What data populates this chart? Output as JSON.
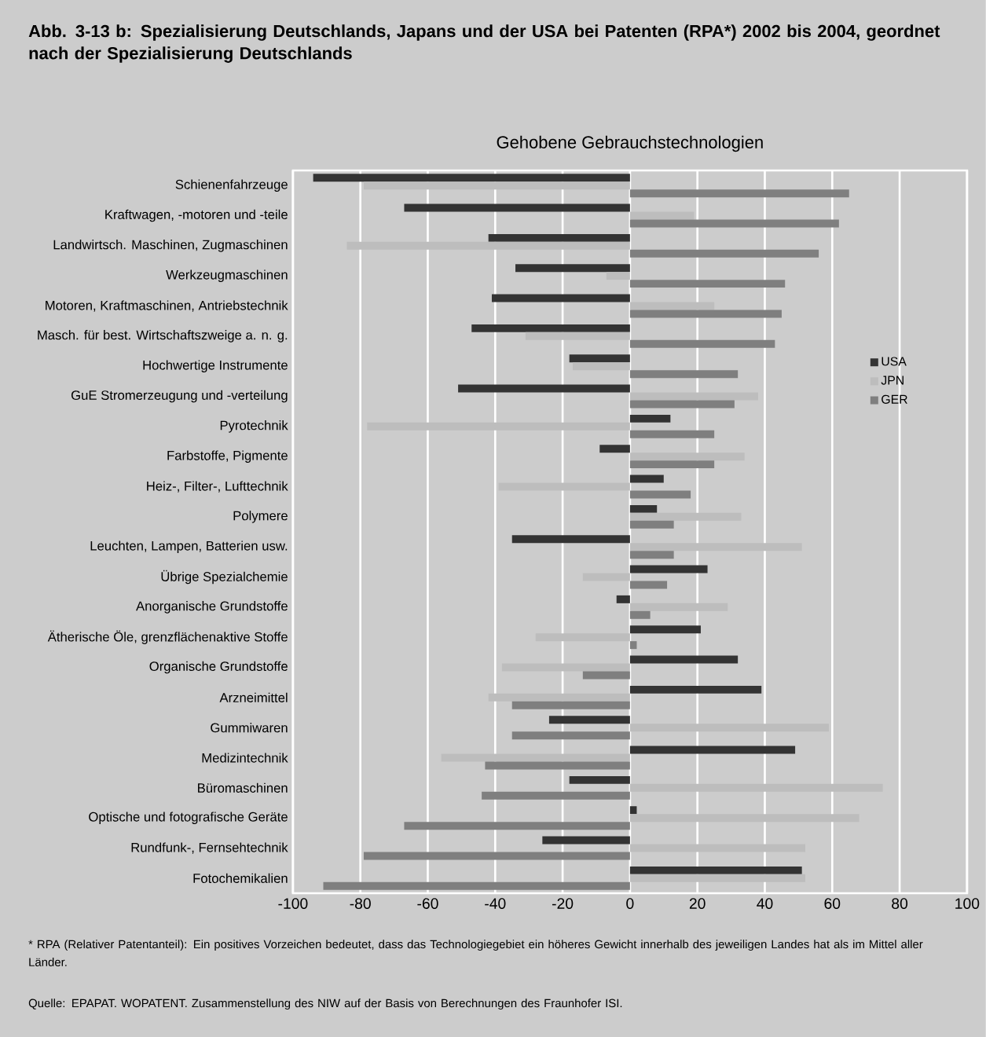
{
  "chart_data": {
    "type": "bar",
    "orientation": "horizontal",
    "title": "Abb. 3-13 b: Spezialisierung Deutschlands, Japans und der USA bei Patenten (RPA*) 2002 bis 2004, geordnet nach der Spezialisierung Deutschlands",
    "subtitle": "Gehobene Gebrauchstechnologien",
    "categories": [
      "Schienenfahrzeuge",
      "Kraftwagen, -motoren und -teile",
      "Landwirtsch. Maschinen, Zugmaschinen",
      "Werkzeugmaschinen",
      "Motoren, Kraftmaschinen, Antriebstechnik",
      "Masch. für best. Wirtschaftszweige a. n. g.",
      "Hochwertige Instrumente",
      "GuE Stromerzeugung und -verteilung",
      "Pyrotechnik",
      "Farbstoffe, Pigmente",
      "Heiz-, Filter-, Lufttechnik",
      "Polymere",
      "Leuchten, Lampen, Batterien usw.",
      "Übrige Spezialchemie",
      "Anorganische Grundstoffe",
      "Ätherische Öle, grenzflächenaktive Stoffe",
      "Organische Grundstoffe",
      "Arzneimittel",
      "Gummiwaren",
      "Medizintechnik",
      "Büromaschinen",
      "Optische und fotografische Geräte",
      "Rundfunk-, Fernsehtechnik",
      "Fotochemikalien"
    ],
    "series": [
      {
        "name": "USA",
        "color": "#333333",
        "values": [
          -94,
          -67,
          -42,
          -34,
          -41,
          -47,
          -18,
          -51,
          12,
          -9,
          10,
          8,
          -35,
          23,
          -4,
          21,
          32,
          39,
          -24,
          49,
          -18,
          2,
          -26,
          51
        ]
      },
      {
        "name": "JPN",
        "color": "#bdbdbd",
        "values": [
          -79,
          19,
          -84,
          -7,
          25,
          -31,
          -17,
          38,
          -78,
          34,
          -39,
          33,
          51,
          -14,
          29,
          -28,
          -38,
          -42,
          59,
          -56,
          75,
          68,
          52,
          52
        ]
      },
      {
        "name": "GER",
        "color": "#7f7f7f",
        "values": [
          65,
          62,
          56,
          46,
          45,
          43,
          32,
          31,
          25,
          25,
          18,
          13,
          13,
          11,
          6,
          2,
          -14,
          -35,
          -35,
          -43,
          -44,
          -67,
          -79,
          -91
        ]
      }
    ],
    "xlim": [
      -100,
      100
    ],
    "xticks": [
      -100,
      -80,
      -60,
      -40,
      -20,
      0,
      20,
      40,
      60,
      80,
      100
    ],
    "grid": "x",
    "legend": "right",
    "annotations": [
      "* RPA (Relativer Patentanteil): Ein positives Vorzeichen bedeutet, dass das Technologiegebiet ein höheres Gewicht innerhalb des jeweiligen Landes hat als im Mittel aller Länder.",
      "Quelle: EPAPAT. WOPATENT. Zusammenstellung des NIW auf der Basis von Berechnungen des Fraunhofer ISI."
    ]
  }
}
